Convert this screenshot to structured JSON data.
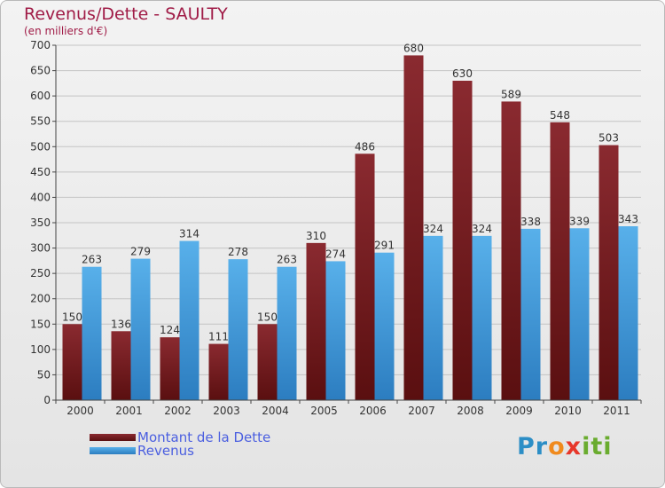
{
  "title": "Revenus/Dette - SAULTY",
  "subtitle": "(en milliers d'€)",
  "logo": {
    "text": "Proxiti"
  },
  "colors": {
    "dette": "#7b1e20",
    "revenus": "#3d9ae0",
    "axis": "#444444",
    "grid": "#c4c4c4",
    "label": "#333333"
  },
  "legend": {
    "dette_label": "Montant de la Dette",
    "revenus_label": "Revenus"
  },
  "chart_data": {
    "type": "bar",
    "title": "Revenus/Dette - SAULTY",
    "subtitle": "(en milliers d'€)",
    "categories": [
      "2000",
      "2001",
      "2002",
      "2003",
      "2004",
      "2005",
      "2006",
      "2007",
      "2008",
      "2009",
      "2010",
      "2011"
    ],
    "series": [
      {
        "name": "Montant de la Dette",
        "values": [
          150,
          136,
          124,
          111,
          150,
          310,
          486,
          680,
          630,
          589,
          548,
          503
        ]
      },
      {
        "name": "Revenus",
        "values": [
          263,
          279,
          314,
          278,
          263,
          274,
          291,
          324,
          324,
          338,
          339,
          343
        ]
      }
    ],
    "ylim": [
      0,
      700
    ],
    "yticks": [
      0,
      50,
      100,
      150,
      200,
      250,
      300,
      350,
      400,
      450,
      500,
      550,
      600,
      650,
      700
    ],
    "grid": true,
    "legend_position": "bottom-left"
  }
}
